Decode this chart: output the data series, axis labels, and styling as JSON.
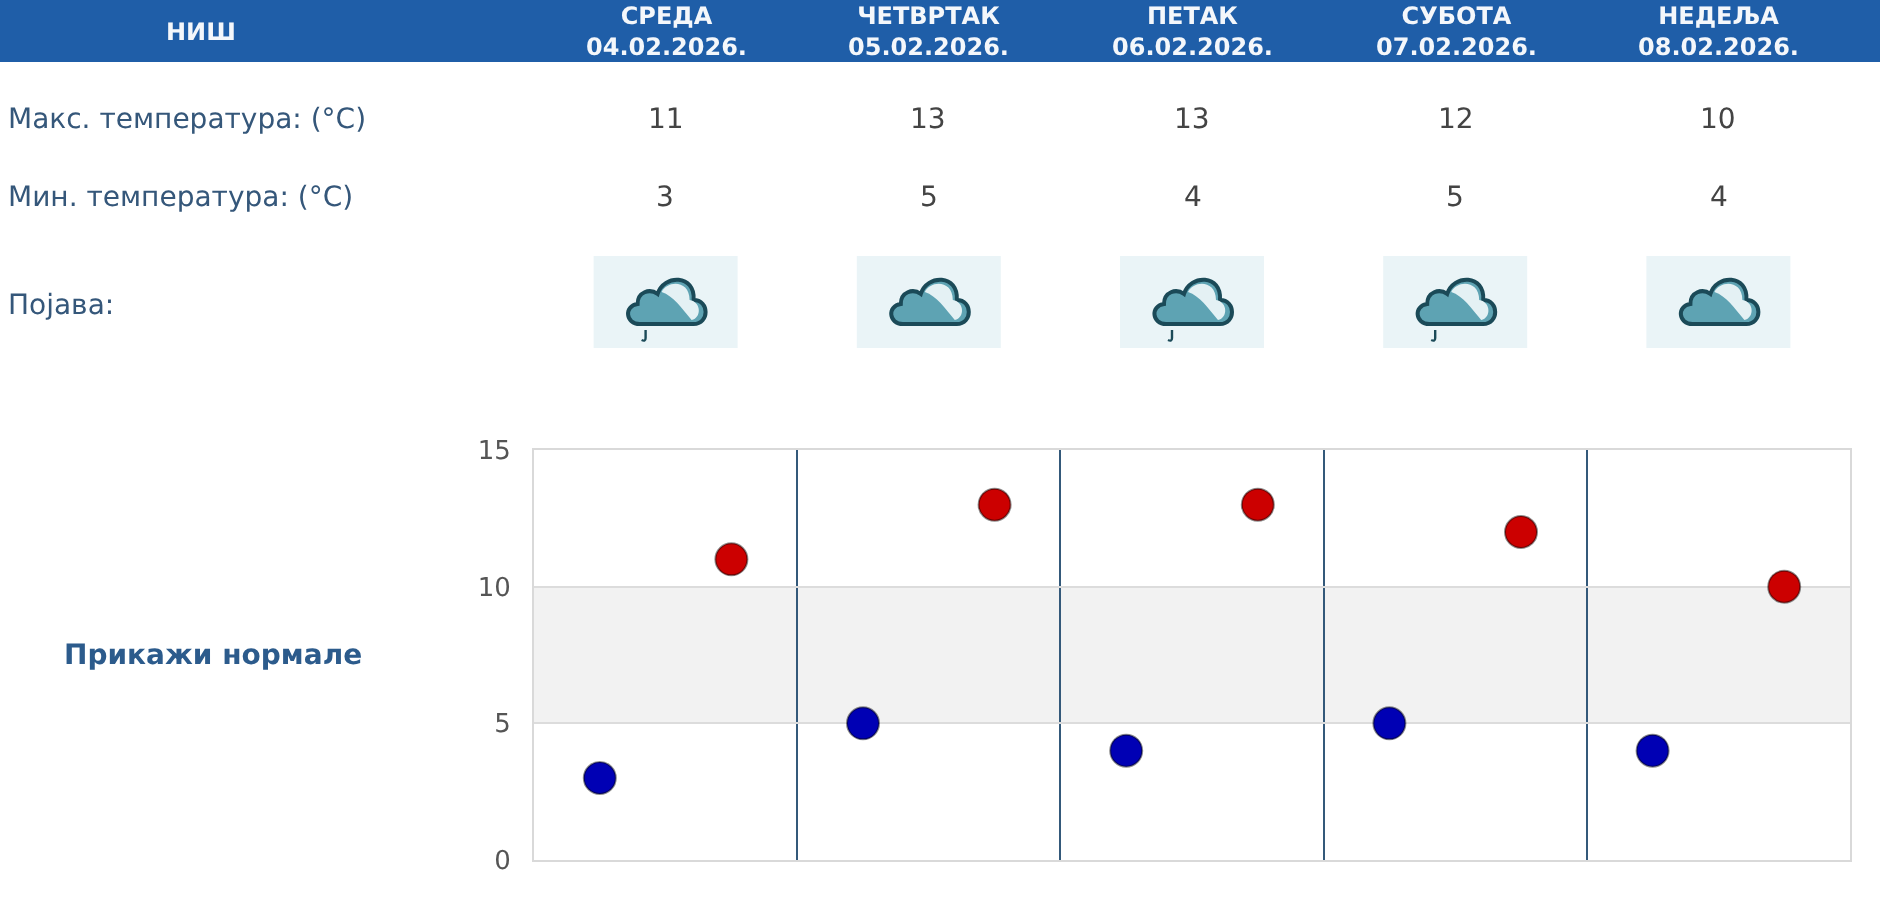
{
  "chart_data": {
    "type": "scatter",
    "title": "НИШ",
    "categories": [
      null,
      null,
      null,
      null,
      null
    ],
    "series": [
      {
        "color": "#cc0000",
        "values": [
          11,
          13,
          13,
          12,
          10
        ]
      },
      {
        "color": "#0000b4",
        "values": [
          3,
          5,
          4,
          5,
          4
        ]
      }
    ],
    "data_labels": true,
    "ylim": [
      0,
      15
    ],
    "yticks": [
      0,
      5,
      10,
      15
    ],
    "grid": true,
    "marker": "circle",
    "bands": [
      {
        "axis": "y",
        "from": 5,
        "to": 10,
        "color": "#f2f2f2"
      }
    ],
    "annotations": [
      "СРЕДА\n04.02.2026.",
      "ЧЕТВРТАК\n05.02.2026.",
      "ПЕТАК\n06.02.2026.",
      "СУБОТА\n07.02.2026.",
      "НЕДЕЉА\n08.02.2026.",
      "Макс. температура: (°C)",
      "Мин. температура: (°C)",
      "Појава:",
      "Прикажи нормале"
    ]
  }
}
